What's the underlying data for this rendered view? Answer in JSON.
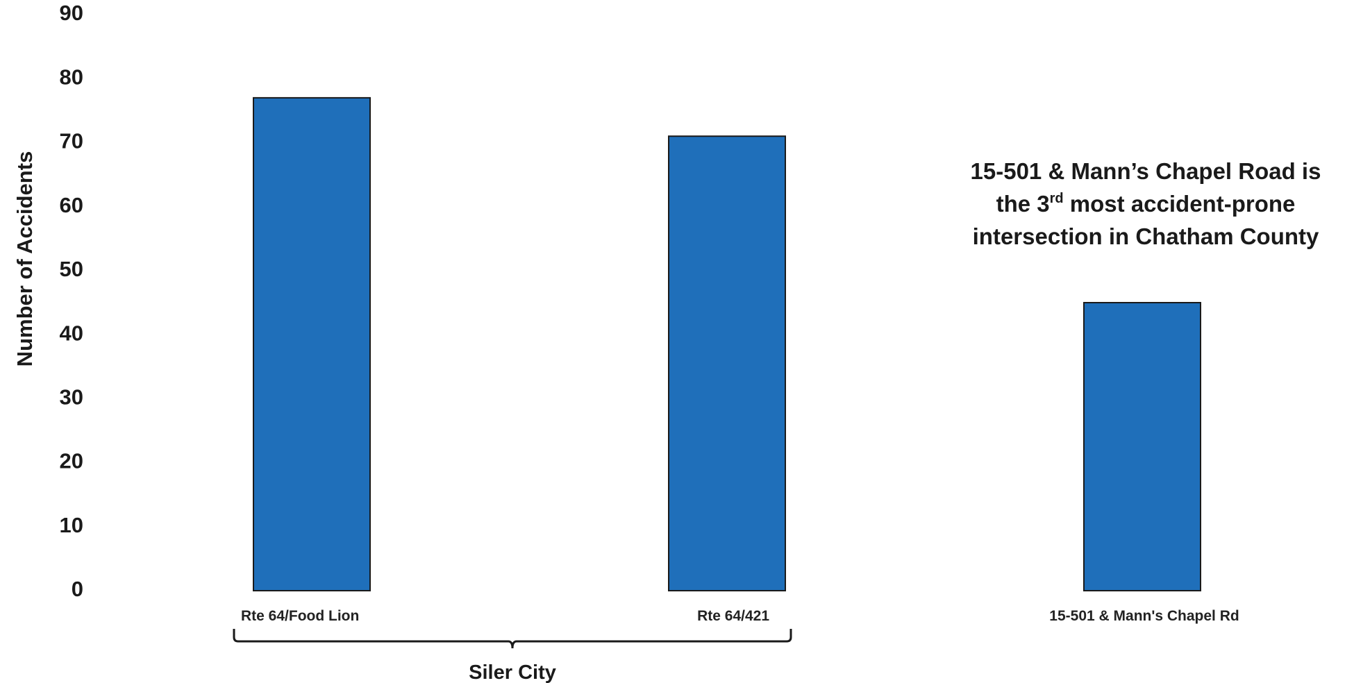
{
  "chart_data": {
    "type": "bar",
    "title": "",
    "xlabel": "",
    "ylabel": "Number of Accidents",
    "ylim": [
      0,
      90
    ],
    "yticks": [
      0,
      10,
      20,
      30,
      40,
      50,
      60,
      70,
      80,
      90
    ],
    "categories": [
      "Rte 64/Food Lion",
      "Rte 64/421",
      "15-501 & Mann's Chapel Rd"
    ],
    "values": [
      77,
      71,
      45
    ],
    "bar_color": "#1f6fba",
    "bar_edge_color": "#1a1a1a",
    "grid": false,
    "group_bracket": {
      "label": "Siler City",
      "categories": [
        "Rte 64/Food Lion",
        "Rte 64/421"
      ]
    },
    "annotation": {
      "line1": "15-501 & Mann’s Chapel Road is",
      "line2_before": "the 3",
      "line2_sup": "rd",
      "line2_after": " most accident-prone",
      "line3": "intersection in Chatham County"
    }
  }
}
